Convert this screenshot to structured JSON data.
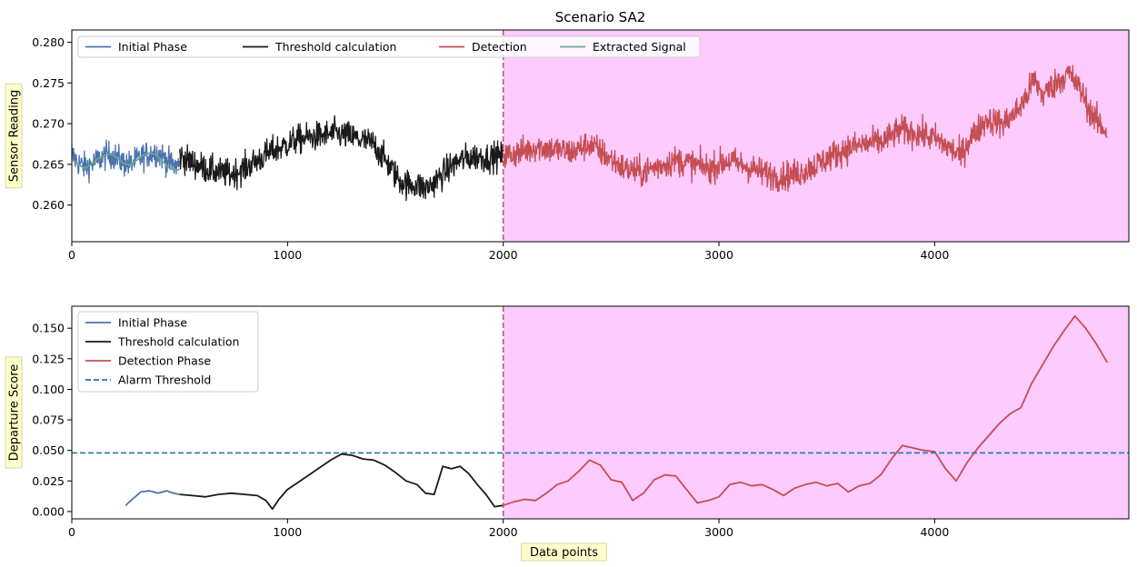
{
  "chart_data": [
    {
      "type": "line",
      "title": "Scenario SA2",
      "xlabel": "",
      "ylabel": "Sensor Reading",
      "xlim": [
        0,
        4900
      ],
      "ylim": [
        0.2555,
        0.2815
      ],
      "xticks": [
        0,
        1000,
        2000,
        3000,
        4000
      ],
      "xtick_labels": [
        "0",
        "1000",
        "2000",
        "3000",
        "4000"
      ],
      "yticks": [
        0.26,
        0.265,
        0.27,
        0.275,
        0.28
      ],
      "ytick_labels": [
        "0.260",
        "0.265",
        "0.270",
        "0.275",
        "0.280"
      ],
      "legend_position": "top-left",
      "legend_columns": 4,
      "detection_start": 2000,
      "series": [
        {
          "name": "Initial Phase",
          "color": "#4c72b0",
          "noise": 0.0016,
          "x": [
            0,
            30,
            60,
            90,
            120,
            150,
            180,
            210,
            240,
            270,
            300,
            330,
            360,
            390,
            420,
            450,
            480,
            500
          ],
          "y": [
            0.2662,
            0.2652,
            0.2647,
            0.265,
            0.2655,
            0.266,
            0.2662,
            0.2658,
            0.2652,
            0.265,
            0.2655,
            0.266,
            0.2663,
            0.2665,
            0.266,
            0.2652,
            0.2648,
            0.265
          ]
        },
        {
          "name": "Threshold calculation",
          "color": "#1a1a1a",
          "noise": 0.0017,
          "x": [
            500,
            560,
            620,
            680,
            740,
            800,
            860,
            920,
            980,
            1040,
            1100,
            1160,
            1220,
            1280,
            1340,
            1400,
            1440,
            1480,
            1520,
            1560,
            1600,
            1640,
            1680,
            1720,
            1760,
            1800,
            1840,
            1880,
            1920,
            1960,
            2000
          ],
          "y": [
            0.266,
            0.2652,
            0.2645,
            0.264,
            0.2638,
            0.2645,
            0.2655,
            0.2665,
            0.2672,
            0.268,
            0.2683,
            0.2685,
            0.2688,
            0.2685,
            0.268,
            0.2675,
            0.266,
            0.2645,
            0.263,
            0.2625,
            0.2625,
            0.262,
            0.2628,
            0.2638,
            0.2648,
            0.2655,
            0.2658,
            0.266,
            0.2658,
            0.266,
            0.266
          ]
        },
        {
          "name": "Detection",
          "color": "#c44e52",
          "noise": 0.0017,
          "x": [
            2000,
            2080,
            2160,
            2240,
            2320,
            2400,
            2480,
            2560,
            2640,
            2720,
            2800,
            2880,
            2960,
            3040,
            3120,
            3200,
            3280,
            3360,
            3440,
            3520,
            3600,
            3680,
            3760,
            3840,
            3920,
            4000,
            4080,
            4120,
            4160,
            4240,
            4320,
            4380,
            4420,
            4460,
            4500,
            4560,
            4620,
            4680,
            4720,
            4760,
            4800
          ],
          "y": [
            0.266,
            0.2665,
            0.2672,
            0.2668,
            0.2665,
            0.2675,
            0.266,
            0.2645,
            0.264,
            0.2648,
            0.2655,
            0.265,
            0.2645,
            0.2655,
            0.2648,
            0.264,
            0.2635,
            0.2638,
            0.2648,
            0.266,
            0.267,
            0.2675,
            0.2678,
            0.2692,
            0.2688,
            0.2682,
            0.2668,
            0.266,
            0.268,
            0.2705,
            0.27,
            0.2715,
            0.273,
            0.2755,
            0.2735,
            0.275,
            0.2762,
            0.274,
            0.2715,
            0.27,
            0.269
          ]
        },
        {
          "name": "Extracted Signal",
          "color": "#6aa98a",
          "noise": 0,
          "x": [
            0,
            30,
            60,
            90,
            120,
            150,
            180,
            210,
            240,
            270,
            300,
            330,
            360,
            390,
            420,
            450,
            480,
            500
          ],
          "y": [
            0.2656,
            0.265,
            0.2645,
            0.265,
            0.2657,
            0.2661,
            0.2663,
            0.2658,
            0.2651,
            0.2649,
            0.2655,
            0.2661,
            0.2664,
            0.2662,
            0.2654,
            0.2646,
            0.2642,
            0.2644
          ]
        }
      ]
    },
    {
      "type": "line",
      "title": "",
      "xlabel": "Data points",
      "ylabel": "Departure Score",
      "xlim": [
        0,
        4900
      ],
      "ylim": [
        -0.006,
        0.168
      ],
      "xticks": [
        0,
        1000,
        2000,
        3000,
        4000
      ],
      "xtick_labels": [
        "0",
        "1000",
        "2000",
        "3000",
        "4000"
      ],
      "yticks": [
        0.0,
        0.025,
        0.05,
        0.075,
        0.1,
        0.125,
        0.15
      ],
      "ytick_labels": [
        "0.000",
        "0.025",
        "0.050",
        "0.075",
        "0.100",
        "0.125",
        "0.150"
      ],
      "legend_position": "top-left",
      "legend_columns": 1,
      "detection_start": 2000,
      "alarm_threshold": 0.048,
      "series": [
        {
          "name": "Initial Phase",
          "color": "#4c72b0",
          "x": [
            250,
            280,
            320,
            360,
            400,
            440,
            470,
            500
          ],
          "y": [
            0.005,
            0.01,
            0.016,
            0.017,
            0.015,
            0.017,
            0.015,
            0.014
          ]
        },
        {
          "name": "Threshold calculation",
          "color": "#1a1a1a",
          "x": [
            500,
            560,
            620,
            680,
            740,
            800,
            860,
            900,
            930,
            960,
            1000,
            1050,
            1100,
            1150,
            1200,
            1250,
            1300,
            1350,
            1400,
            1450,
            1500,
            1550,
            1600,
            1640,
            1680,
            1720,
            1760,
            1800,
            1840,
            1880,
            1920,
            1960,
            2000
          ],
          "y": [
            0.014,
            0.013,
            0.012,
            0.014,
            0.015,
            0.014,
            0.013,
            0.009,
            0.002,
            0.01,
            0.018,
            0.024,
            0.03,
            0.036,
            0.042,
            0.047,
            0.046,
            0.043,
            0.042,
            0.038,
            0.032,
            0.025,
            0.022,
            0.015,
            0.014,
            0.037,
            0.035,
            0.037,
            0.031,
            0.022,
            0.014,
            0.004,
            0.005
          ]
        },
        {
          "name": "Detection Phase",
          "color": "#c44e52",
          "x": [
            2000,
            2050,
            2100,
            2150,
            2200,
            2250,
            2300,
            2350,
            2400,
            2450,
            2500,
            2550,
            2600,
            2650,
            2700,
            2750,
            2800,
            2850,
            2900,
            2950,
            3000,
            3050,
            3100,
            3150,
            3200,
            3250,
            3300,
            3350,
            3400,
            3450,
            3500,
            3550,
            3600,
            3650,
            3700,
            3750,
            3800,
            3850,
            3900,
            3950,
            4000,
            4050,
            4100,
            4150,
            4200,
            4250,
            4300,
            4350,
            4400,
            4450,
            4500,
            4550,
            4600,
            4650,
            4700,
            4750,
            4800
          ],
          "y": [
            0.005,
            0.008,
            0.01,
            0.009,
            0.015,
            0.022,
            0.025,
            0.033,
            0.042,
            0.038,
            0.026,
            0.024,
            0.009,
            0.015,
            0.026,
            0.03,
            0.029,
            0.018,
            0.007,
            0.009,
            0.012,
            0.022,
            0.024,
            0.021,
            0.022,
            0.018,
            0.013,
            0.019,
            0.022,
            0.024,
            0.021,
            0.023,
            0.016,
            0.021,
            0.023,
            0.03,
            0.043,
            0.054,
            0.052,
            0.05,
            0.049,
            0.035,
            0.025,
            0.04,
            0.052,
            0.062,
            0.072,
            0.08,
            0.085,
            0.105,
            0.12,
            0.135,
            0.148,
            0.16,
            0.15,
            0.137,
            0.122
          ]
        },
        {
          "name": "Alarm Threshold",
          "color": "#1f77b4",
          "dashed": true,
          "x": [
            0,
            4900
          ],
          "y": [
            0.048,
            0.048
          ]
        }
      ]
    }
  ]
}
